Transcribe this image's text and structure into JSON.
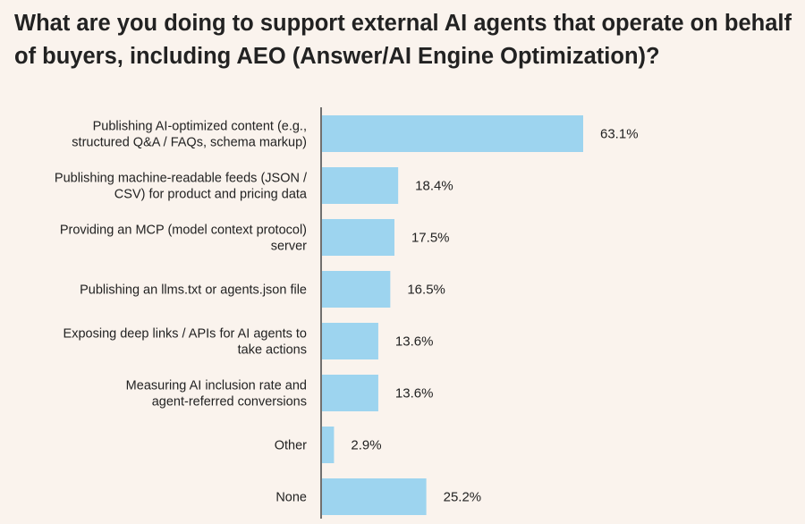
{
  "chart_data": {
    "type": "bar",
    "orientation": "horizontal",
    "title": "What are you doing to support external AI agents that operate on behalf of buyers, including AEO (Answer/AI Engine Optimization)?",
    "categories": [
      [
        "Publishing AI-optimized content (e.g.,",
        "structured Q&A / FAQs, schema markup)"
      ],
      [
        "Publishing machine-readable feeds (JSON /",
        "CSV) for product and pricing data"
      ],
      [
        "Providing an MCP (model context protocol)",
        "server"
      ],
      [
        "Publishing an llms.txt or agents.json file"
      ],
      [
        "Exposing deep links / APIs for AI agents to",
        "take actions"
      ],
      [
        "Measuring AI inclusion rate and",
        "agent-referred conversions"
      ],
      [
        "Other"
      ],
      [
        "None"
      ]
    ],
    "values": [
      63.1,
      18.4,
      17.5,
      16.5,
      13.6,
      13.6,
      2.9,
      25.2
    ],
    "value_labels": [
      "63.1%",
      "18.4%",
      "17.5%",
      "16.5%",
      "13.6%",
      "13.6%",
      "2.9%",
      "25.2%"
    ],
    "xlabel": "",
    "ylabel": "",
    "xlim": [
      0,
      70
    ],
    "grid": false,
    "bar_color": "#9dd4ef",
    "axis_color": "#444444"
  }
}
